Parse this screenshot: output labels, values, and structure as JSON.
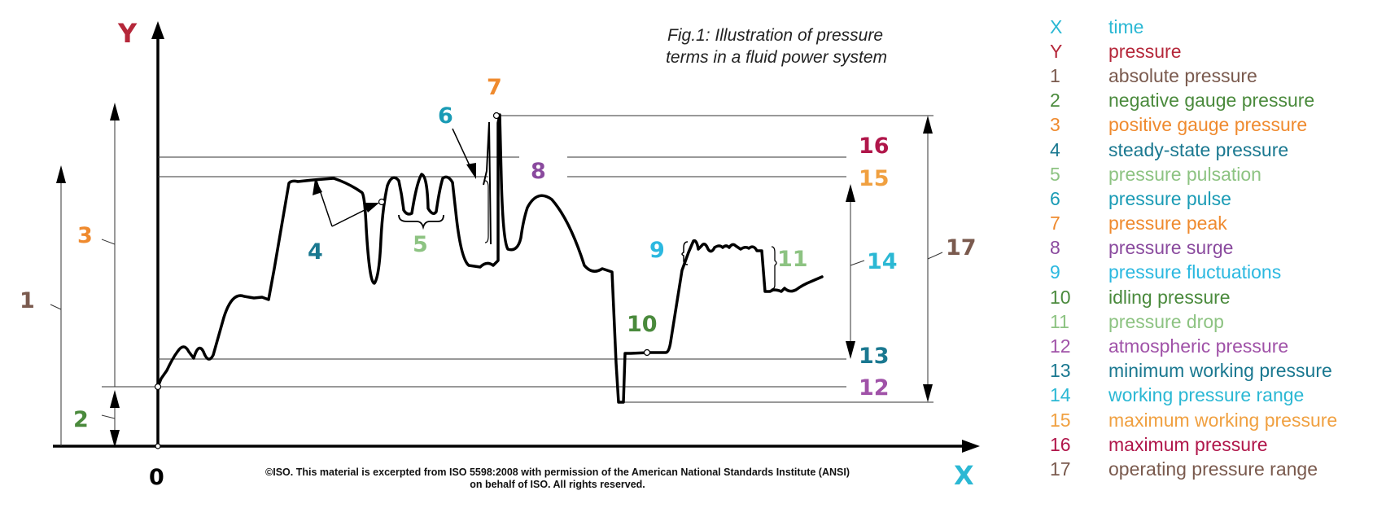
{
  "caption": {
    "line1": "Fig.1: Illustration of pressure",
    "line2": "terms in a fluid power system"
  },
  "copyright": {
    "line1": "©ISO. This material is excerpted from ISO 5598:2008 with permission of the American National Standards Institute (ANSI)",
    "line2": "on behalf of ISO. All rights reserved."
  },
  "axes": {
    "x": "X",
    "y": "Y",
    "origin": "0"
  },
  "labels": {
    "n1": "1",
    "n2": "2",
    "n3": "3",
    "n4": "4",
    "n5": "5",
    "n6": "6",
    "n7": "7",
    "n8": "8",
    "n9": "9",
    "n10": "10",
    "n11": "11",
    "n12": "12",
    "n13": "13",
    "n14": "14",
    "n15": "15",
    "n16": "16",
    "n17": "17"
  },
  "legend": [
    {
      "key": "X",
      "text": "time",
      "color": "#2bb8d4"
    },
    {
      "key": "Y",
      "text": "pressure",
      "color": "#b5273a"
    },
    {
      "key": "1",
      "text": "absolute pressure",
      "color": "#7a5a4e"
    },
    {
      "key": "2",
      "text": "negative gauge pressure",
      "color": "#4a8a3c"
    },
    {
      "key": "3",
      "text": "positive gauge pressure",
      "color": "#ef8a2e"
    },
    {
      "key": "4",
      "text": "steady-state pressure",
      "color": "#1a7890"
    },
    {
      "key": "5",
      "text": "pressure pulsation",
      "color": "#8dc382"
    },
    {
      "key": "6",
      "text": "pressure pulse",
      "color": "#1a9bb5"
    },
    {
      "key": "7",
      "text": "pressure peak",
      "color": "#ef8a2e"
    },
    {
      "key": "8",
      "text": "pressure surge",
      "color": "#8a4a9e"
    },
    {
      "key": "9",
      "text": "pressure fluctuations",
      "color": "#2bb8e0"
    },
    {
      "key": "10",
      "text": "idling pressure",
      "color": "#4a8a3c"
    },
    {
      "key": "11",
      "text": "pressure drop",
      "color": "#8dc382"
    },
    {
      "key": "12",
      "text": "atmospheric pressure",
      "color": "#a052a8"
    },
    {
      "key": "13",
      "text": "minimum working pressure",
      "color": "#1a7890"
    },
    {
      "key": "14",
      "text": "working pressure range",
      "color": "#2bb8d4"
    },
    {
      "key": "15",
      "text": "maximum working pressure",
      "color": "#f0a040"
    },
    {
      "key": "16",
      "text": "maximum pressure",
      "color": "#b0164a"
    },
    {
      "key": "17",
      "text": "operating pressure range",
      "color": "#7a5a4e"
    }
  ]
}
